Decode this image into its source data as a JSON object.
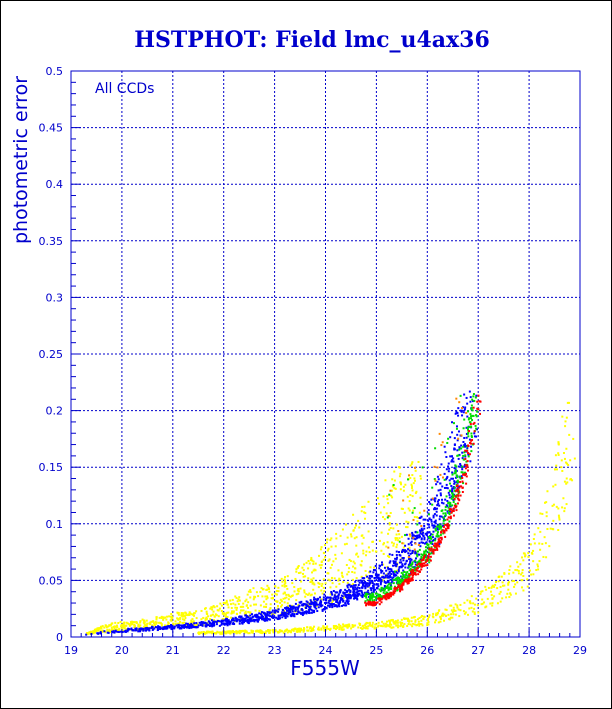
{
  "chart_data": {
    "type": "scatter",
    "title": "HSTPHOT: Field lmc_u4ax36",
    "xlabel": "F555W",
    "ylabel": "photometric error",
    "annotation": "All CCDs",
    "xlim": [
      19,
      29
    ],
    "ylim": [
      0,
      0.5
    ],
    "grid": true,
    "x_ticks": [
      "19",
      "20",
      "21",
      "22",
      "23",
      "24",
      "25",
      "26",
      "27",
      "28",
      "29"
    ],
    "y_ticks": [
      "0",
      "0.05",
      "0.1",
      "0.15",
      "0.2",
      "0.25",
      "0.3",
      "0.35",
      "0.4",
      "0.45",
      "0.5"
    ],
    "colors": {
      "title": "#0000cc",
      "axis": "#0000cc",
      "grid": "#0000cc",
      "yellow": "#ffff00",
      "blue": "#0000ff",
      "green": "#00dd00",
      "red": "#ff0000",
      "orange": "#ff8800"
    },
    "series": [
      {
        "color": "yellow",
        "description_points": [
          [
            19.3,
            0.004
          ],
          [
            19.8,
            0.012
          ],
          [
            20.5,
            0.015
          ],
          [
            21.0,
            0.02
          ],
          [
            21.5,
            0.022
          ],
          [
            22.0,
            0.03
          ],
          [
            22.5,
            0.04
          ],
          [
            23.0,
            0.045
          ],
          [
            23.5,
            0.06
          ],
          [
            24.0,
            0.08
          ],
          [
            24.5,
            0.1
          ],
          [
            25.0,
            0.12
          ],
          [
            25.5,
            0.15
          ],
          [
            23.2,
            0.005
          ],
          [
            24.0,
            0.008
          ],
          [
            25.0,
            0.01
          ],
          [
            26.0,
            0.015
          ],
          [
            26.5,
            0.022
          ],
          [
            27.0,
            0.03
          ],
          [
            27.5,
            0.045
          ],
          [
            28.0,
            0.06
          ],
          [
            28.5,
            0.12
          ],
          [
            28.9,
            0.2
          ]
        ]
      },
      {
        "color": "blue",
        "description_points": [
          [
            19.2,
            0.002
          ],
          [
            20.0,
            0.005
          ],
          [
            21.0,
            0.008
          ],
          [
            22.0,
            0.012
          ],
          [
            23.0,
            0.018
          ],
          [
            24.0,
            0.028
          ],
          [
            24.5,
            0.036
          ],
          [
            25.0,
            0.046
          ],
          [
            25.5,
            0.06
          ],
          [
            26.0,
            0.085
          ],
          [
            26.3,
            0.11
          ],
          [
            26.6,
            0.15
          ],
          [
            26.9,
            0.21
          ]
        ]
      },
      {
        "color": "green",
        "description_points": [
          [
            25.0,
            0.035
          ],
          [
            25.5,
            0.05
          ],
          [
            26.0,
            0.075
          ],
          [
            26.3,
            0.1
          ],
          [
            26.6,
            0.14
          ],
          [
            26.9,
            0.2
          ]
        ]
      },
      {
        "color": "red",
        "description_points": [
          [
            25.0,
            0.03
          ],
          [
            25.5,
            0.045
          ],
          [
            26.0,
            0.07
          ],
          [
            26.4,
            0.1
          ],
          [
            26.7,
            0.14
          ],
          [
            27.0,
            0.21
          ]
        ]
      }
    ]
  }
}
